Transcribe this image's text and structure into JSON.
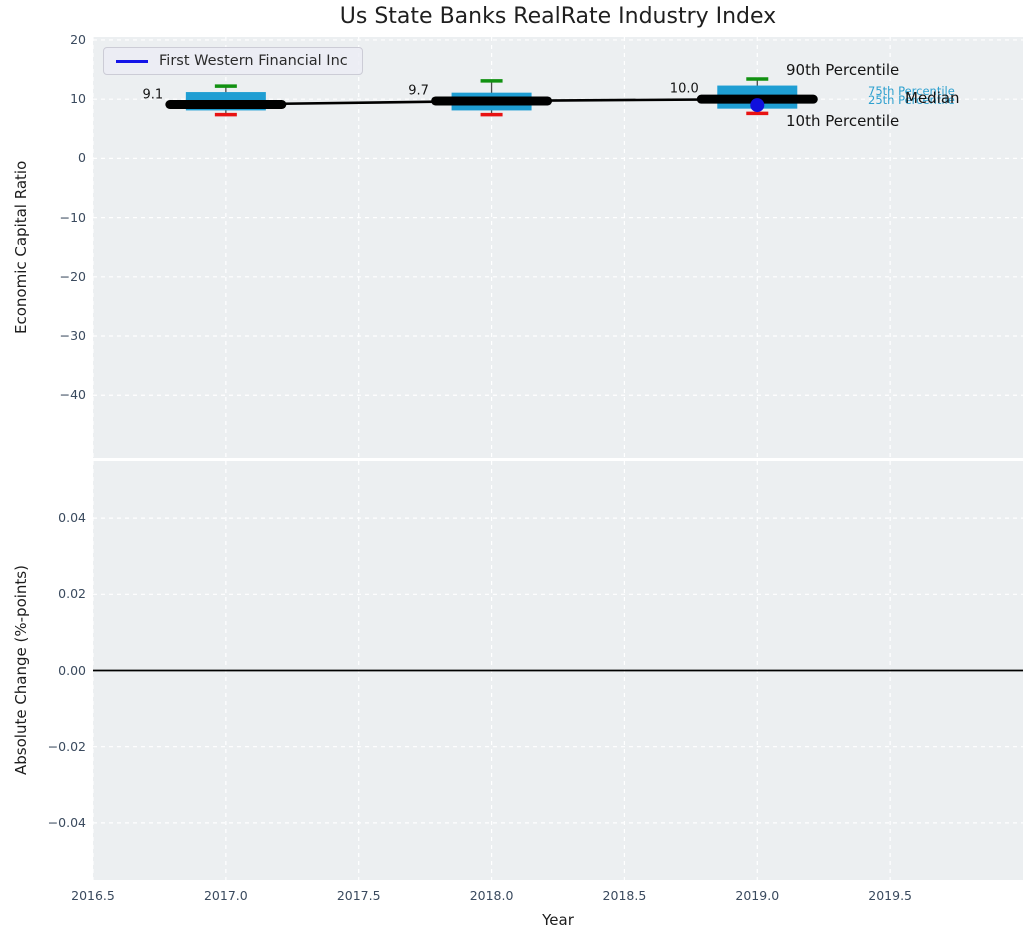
{
  "title": "Us State Banks RealRate Industry Index",
  "legend": {
    "label": "First Western Financial Inc"
  },
  "colors": {
    "figure_bg": "#ffffff",
    "plot_bg": "#eceff1",
    "grid": "#ffffff",
    "box_fill": "#1f9ed3",
    "cap_top_green": "#119111",
    "cap_bottom_red": "#e81212",
    "median_line": "#000000",
    "whisker": "#4a4a4a",
    "company_blue": "#1010dd",
    "tick_label": "#3a4a5e",
    "percentile_cyan": "#2da0cf",
    "zero_line": "#000000"
  },
  "top_chart": {
    "ylabel": "Economic Capital Ratio",
    "ytick_labels": [
      "20",
      "10",
      "0",
      "−10",
      "−20",
      "−30",
      "−40"
    ],
    "ytick_values": [
      20,
      10,
      0,
      -10,
      -20,
      -30,
      -40
    ],
    "annotations": {
      "p90": "90th Percentile",
      "p75": "75th Percentile",
      "p25": "25th Percentile",
      "median": "Median",
      "p10": "10th Percentile"
    }
  },
  "bottom_chart": {
    "ylabel": "Absolute Change (%-points)",
    "ytick_labels": [
      "0.04",
      "0.02",
      "0.00",
      "−0.02",
      "−0.04"
    ],
    "ytick_values": [
      0.04,
      0.02,
      0,
      -0.02,
      -0.04
    ]
  },
  "x_axis": {
    "label": "Year",
    "tick_labels": [
      "2016.5",
      "2017.0",
      "2017.5",
      "2018.0",
      "2018.5",
      "2019.0",
      "2019.5"
    ],
    "tick_values": [
      2016.5,
      2017,
      2017.5,
      2018,
      2018.5,
      2019,
      2019.5
    ],
    "xlim": [
      2016.5,
      2020.0
    ]
  },
  "chart_data": [
    {
      "type": "boxplot",
      "title": "Us State Banks RealRate Industry Index",
      "xlabel": "Year",
      "ylabel": "Economic Capital Ratio",
      "ylim": [
        -50.6,
        20.5
      ],
      "xlim": [
        2016.5,
        2020.0
      ],
      "grid": true,
      "legend_position": "upper left",
      "boxes": [
        {
          "x": 2017,
          "p10": 7.4,
          "p25": 8.1,
          "median": 9.1,
          "p75": 11.2,
          "p90": 12.2,
          "label": "9.1"
        },
        {
          "x": 2018,
          "p10": 7.4,
          "p25": 8.1,
          "median": 9.7,
          "p75": 11.1,
          "p90": 13.1,
          "label": "9.7"
        },
        {
          "x": 2019,
          "p10": 7.6,
          "p25": 8.4,
          "median": 10.0,
          "p75": 12.3,
          "p90": 13.4,
          "label": "10.0"
        }
      ],
      "median_line": {
        "name": "Industry median",
        "x": [
          2017,
          2018,
          2019
        ],
        "values": [
          9.1,
          9.7,
          10.0
        ]
      },
      "company_series": {
        "name": "First Western Financial Inc",
        "x": [
          2019
        ],
        "values": [
          9.0
        ]
      }
    },
    {
      "type": "line",
      "ylabel": "Absolute Change (%-points)",
      "ylim": [
        -0.055,
        0.055
      ],
      "xlim": [
        2016.5,
        2020.0
      ],
      "grid": true,
      "zero_line_y": 0.0,
      "series": []
    }
  ]
}
